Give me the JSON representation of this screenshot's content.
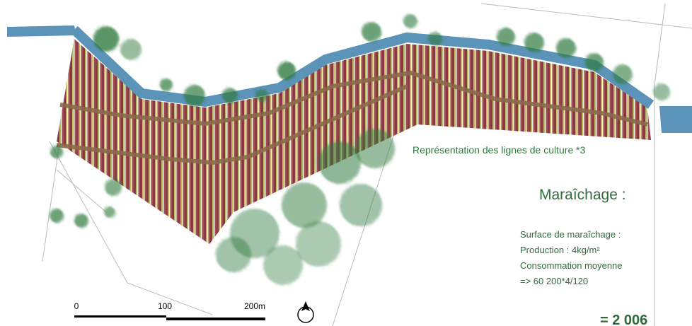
{
  "map": {
    "annotation": "Représentation des lignes de culture *3",
    "panel": {
      "title": "Maraîchage :",
      "lines": [
        "Surface de maraîchage :",
        "Production : 4kg/m²",
        "Consommation moyenne",
        "=> 60 200*4/120"
      ],
      "result": "= 2 006"
    },
    "scale_bar": {
      "labels": [
        "0",
        "100",
        "200m"
      ]
    }
  }
}
